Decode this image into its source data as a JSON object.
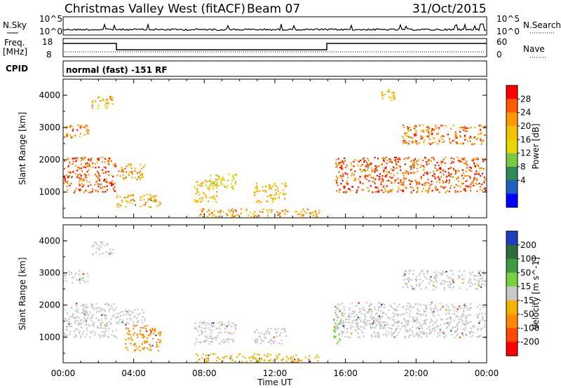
{
  "header": {
    "title": "Christmas Valley West (fitACF)",
    "beam": "Beam 07",
    "date": "31/Oct/2015"
  },
  "panels": {
    "nsky": {
      "left_label": "N.Sky",
      "left_ticks": [
        "10^5",
        "10^0"
      ],
      "right_label": "N.Search",
      "right_ticks": [
        "10^5",
        "10^0"
      ]
    },
    "freq": {
      "left_label_1": "Freq.",
      "left_label_2": "[MHz]",
      "left_ticks": [
        "18",
        "8"
      ],
      "right_label": "Nave",
      "right_ticks": [
        "60",
        "0"
      ]
    },
    "cpid": {
      "label": "CPID",
      "text": "normal (fast) -151 RF"
    }
  },
  "x_axis": {
    "title": "Time UT",
    "ticks": [
      "00:00",
      "04:00",
      "08:00",
      "12:00",
      "16:00",
      "20:00",
      "00:00"
    ]
  },
  "power_colorbar": {
    "label": "Power [dB]",
    "ticks": [
      "28",
      "24",
      "20",
      "16",
      "12",
      "8",
      "4"
    ],
    "colors": [
      "#ff0000",
      "#ff5a00",
      "#ff9a00",
      "#f2c300",
      "#e8d600",
      "#7ac943",
      "#2e8b57",
      "#1f5fbf",
      "#0000ff"
    ]
  },
  "velocity_colorbar": {
    "label": "Velocity [m s^-1]",
    "ticks": [
      "200",
      "100",
      "50",
      "15",
      "-15",
      "-50",
      "-100",
      "-200"
    ],
    "colors": [
      "#1f3fbf",
      "#2e6b3a",
      "#3f9a3f",
      "#7ad140",
      "#c8c8c8",
      "#f2b400",
      "#ff8c00",
      "#ff4a00",
      "#ff0000"
    ]
  },
  "chart_data": [
    {
      "type": "heatmap",
      "name": "power",
      "ylabel": "Slant Range [km]",
      "xlabel": "Time UT",
      "x_range": [
        0,
        24
      ],
      "y_range": [
        200,
        4500
      ],
      "y_ticks": [
        1000,
        2000,
        3000,
        4000
      ],
      "regions": [
        {
          "t0": 0.0,
          "t1": 3.0,
          "r0": 1000,
          "r1": 2100,
          "value": 26
        },
        {
          "t0": 0.0,
          "t1": 1.4,
          "r0": 2700,
          "r1": 3100,
          "value": 24
        },
        {
          "t0": 1.6,
          "t1": 2.8,
          "r0": 3600,
          "r1": 4000,
          "value": 20
        },
        {
          "t0": 3.0,
          "t1": 4.6,
          "r0": 1400,
          "r1": 1900,
          "value": 22
        },
        {
          "t0": 3.0,
          "t1": 5.5,
          "r0": 550,
          "r1": 950,
          "value": 20
        },
        {
          "t0": 7.4,
          "t1": 8.7,
          "r0": 700,
          "r1": 1400,
          "value": 18
        },
        {
          "t0": 8.2,
          "t1": 9.8,
          "r0": 1100,
          "r1": 1600,
          "value": 14
        },
        {
          "t0": 10.8,
          "t1": 12.6,
          "r0": 700,
          "r1": 1300,
          "value": 18
        },
        {
          "t0": 7.5,
          "t1": 14.5,
          "r0": 250,
          "r1": 500,
          "value": 22
        },
        {
          "t0": 15.4,
          "t1": 23.9,
          "r0": 1000,
          "r1": 2100,
          "value": 26
        },
        {
          "t0": 19.2,
          "t1": 23.9,
          "r0": 2500,
          "r1": 3100,
          "value": 24
        },
        {
          "t0": 18.0,
          "t1": 18.8,
          "r0": 3800,
          "r1": 4200,
          "value": 18
        }
      ]
    },
    {
      "type": "heatmap",
      "name": "velocity",
      "ylabel": "Slant Range [km]",
      "xlabel": "Time UT",
      "x_range": [
        0,
        24
      ],
      "y_range": [
        200,
        4500
      ],
      "y_ticks": [
        1000,
        2000,
        3000,
        4000
      ],
      "regions": [
        {
          "t0": 0.0,
          "t1": 3.0,
          "r0": 1000,
          "r1": 2100,
          "value": 0
        },
        {
          "t0": 0.0,
          "t1": 1.4,
          "r0": 2700,
          "r1": 3100,
          "value": 0
        },
        {
          "t0": 1.6,
          "t1": 2.8,
          "r0": 3600,
          "r1": 4000,
          "value": 0
        },
        {
          "t0": 3.0,
          "t1": 4.6,
          "r0": 1400,
          "r1": 1900,
          "value": 0
        },
        {
          "t0": 3.5,
          "t1": 5.5,
          "r0": 600,
          "r1": 1400,
          "value": -60
        },
        {
          "t0": 7.4,
          "t1": 9.8,
          "r0": 800,
          "r1": 1500,
          "value": 0
        },
        {
          "t0": 10.8,
          "t1": 12.6,
          "r0": 800,
          "r1": 1300,
          "value": 0
        },
        {
          "t0": 7.5,
          "t1": 14.5,
          "r0": 250,
          "r1": 500,
          "value": -30
        },
        {
          "t0": 15.3,
          "t1": 15.7,
          "r0": 800,
          "r1": 2000,
          "value": 40
        },
        {
          "t0": 15.4,
          "t1": 23.9,
          "r0": 1000,
          "r1": 2100,
          "value": 0
        },
        {
          "t0": 19.2,
          "t1": 23.9,
          "r0": 2500,
          "r1": 3100,
          "value": 0
        }
      ]
    }
  ]
}
